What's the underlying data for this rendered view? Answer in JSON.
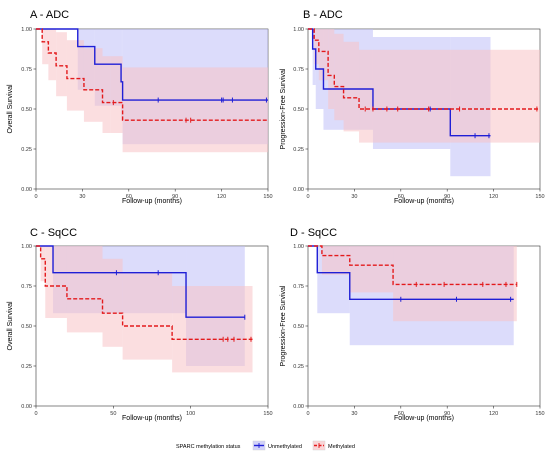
{
  "colors": {
    "unmethylated": "#1f1fd6",
    "unmethylated_band": "#bfbff7",
    "methylated": "#e31a1c",
    "methylated_band": "#f8c3c6"
  },
  "legend": {
    "title": "SPARC methylation status",
    "items": [
      {
        "label": "Unmethylated",
        "color": "#1f1fd6",
        "dash": "none"
      },
      {
        "label": "Methylated",
        "color": "#e31a1c",
        "dash": "4,2"
      }
    ]
  },
  "chart_data": [
    {
      "type": "line",
      "step": true,
      "title": "A - ADC",
      "xlabel": "Follow-up (months)",
      "ylabel": "Overall Survival",
      "xlim": [
        0,
        150
      ],
      "ylim": [
        0,
        1
      ],
      "xticks": [
        0,
        30,
        60,
        90,
        120,
        150
      ],
      "yticks": [
        "0.00",
        "0.25",
        "0.50",
        "0.75",
        "1.00"
      ],
      "grid": false,
      "series": [
        {
          "name": "Unmethylated",
          "x": [
            0,
            27,
            38,
            55,
            56,
            150
          ],
          "y": [
            1.0,
            0.89,
            0.78,
            0.67,
            0.556,
            0.556
          ],
          "lower": [
            1.0,
            0.62,
            0.52,
            0.43,
            0.28,
            0.28
          ],
          "upper": [
            1.0,
            1.0,
            1.0,
            1.0,
            1.0,
            1.0
          ],
          "censored": [
            [
              79,
              0.556
            ],
            [
              120,
              0.556
            ],
            [
              121,
              0.556
            ],
            [
              127,
              0.556
            ],
            [
              149,
              0.556
            ]
          ]
        },
        {
          "name": "Methylated",
          "x": [
            0,
            4,
            8,
            13,
            20,
            31,
            43,
            48,
            56,
            150
          ],
          "y": [
            1.0,
            0.92,
            0.85,
            0.77,
            0.69,
            0.62,
            0.54,
            0.54,
            0.43,
            0.43
          ],
          "lower": [
            1.0,
            0.78,
            0.68,
            0.58,
            0.49,
            0.42,
            0.35,
            0.35,
            0.23,
            0.23
          ],
          "upper": [
            1.0,
            1.0,
            1.0,
            0.98,
            0.93,
            0.88,
            0.83,
            0.83,
            0.76,
            0.76
          ],
          "censored": [
            [
              50,
              0.54
            ],
            [
              97,
              0.43
            ],
            [
              100,
              0.43
            ]
          ]
        }
      ]
    },
    {
      "type": "line",
      "step": true,
      "title": "B - ADC",
      "xlabel": "Follow-up (months)",
      "ylabel": "Progression-Free Survival",
      "xlim": [
        0,
        150
      ],
      "ylim": [
        0,
        1
      ],
      "xticks": [
        0,
        30,
        60,
        90,
        120,
        150
      ],
      "yticks": [
        "0.00",
        "0.25",
        "0.50",
        "0.75",
        "1.00"
      ],
      "grid": false,
      "series": [
        {
          "name": "Unmethylated",
          "x": [
            0,
            3,
            5,
            10,
            42,
            92,
            118
          ],
          "y": [
            1.0,
            0.875,
            0.75,
            0.625,
            0.5,
            0.333,
            0.333
          ],
          "lower": [
            1.0,
            0.65,
            0.5,
            0.37,
            0.25,
            0.08,
            0.08
          ],
          "upper": [
            1.0,
            1.0,
            1.0,
            1.0,
            0.95,
            0.95,
            0.95
          ],
          "censored": [
            [
              79,
              0.5
            ],
            [
              108,
              0.333
            ],
            [
              117,
              0.333
            ]
          ]
        },
        {
          "name": "Methylated",
          "x": [
            0,
            4,
            7,
            13,
            17,
            23,
            33,
            150
          ],
          "y": [
            1.0,
            0.93,
            0.86,
            0.71,
            0.64,
            0.57,
            0.5,
            0.5
          ],
          "lower": [
            1.0,
            0.78,
            0.68,
            0.5,
            0.43,
            0.36,
            0.29,
            0.29
          ],
          "upper": [
            1.0,
            1.0,
            1.0,
            1.0,
            0.97,
            0.92,
            0.87,
            0.87
          ],
          "censored": [
            [
              37,
              0.5
            ],
            [
              42,
              0.5
            ],
            [
              51,
              0.5
            ],
            [
              58,
              0.5
            ],
            [
              78,
              0.5
            ],
            [
              98,
              0.5
            ],
            [
              148,
              0.5
            ]
          ]
        }
      ]
    },
    {
      "type": "line",
      "step": true,
      "title": "C - SqCC",
      "xlabel": "Follow-up (months)",
      "ylabel": "Overall Survival",
      "xlim": [
        0,
        150
      ],
      "ylim": [
        0,
        1
      ],
      "xticks": [
        0,
        50,
        100,
        150
      ],
      "yticks": [
        "0.00",
        "0.25",
        "0.50",
        "0.75",
        "1.00"
      ],
      "grid": false,
      "series": [
        {
          "name": "Unmethylated",
          "x": [
            0,
            11,
            97,
            135
          ],
          "y": [
            1.0,
            0.833,
            0.555,
            0.555
          ],
          "lower": [
            1.0,
            0.58,
            0.25,
            0.25
          ],
          "upper": [
            1.0,
            1.0,
            1.0,
            1.0
          ],
          "censored": [
            [
              52,
              0.833
            ],
            [
              79,
              0.833
            ],
            [
              135,
              0.555
            ]
          ]
        },
        {
          "name": "Methylated",
          "x": [
            0,
            3,
            6,
            20,
            43,
            56,
            88,
            140
          ],
          "y": [
            1.0,
            0.92,
            0.75,
            0.67,
            0.58,
            0.5,
            0.417,
            0.417
          ],
          "lower": [
            1.0,
            0.78,
            0.55,
            0.46,
            0.37,
            0.29,
            0.21,
            0.21
          ],
          "upper": [
            1.0,
            1.0,
            1.0,
            1.0,
            0.92,
            0.83,
            0.75,
            0.75
          ],
          "censored": [
            [
              121,
              0.417
            ],
            [
              124,
              0.417
            ],
            [
              128,
              0.417
            ],
            [
              139,
              0.417
            ]
          ]
        }
      ]
    },
    {
      "type": "line",
      "step": true,
      "title": "D - SqCC",
      "xlabel": "Follow-up (months)",
      "ylabel": "Progression-Free Survival",
      "xlim": [
        0,
        150
      ],
      "ylim": [
        0,
        1
      ],
      "xticks": [
        0,
        30,
        60,
        90,
        120,
        150
      ],
      "yticks": [
        "0.00",
        "0.25",
        "0.50",
        "0.75",
        "1.00"
      ],
      "grid": false,
      "series": [
        {
          "name": "Unmethylated",
          "x": [
            0,
            6,
            27,
            133
          ],
          "y": [
            1.0,
            0.833,
            0.667,
            0.667
          ],
          "lower": [
            1.0,
            0.58,
            0.38,
            0.38
          ],
          "upper": [
            1.0,
            1.0,
            1.0,
            1.0
          ],
          "censored": [
            [
              60,
              0.667
            ],
            [
              96,
              0.667
            ],
            [
              131,
              0.667
            ]
          ]
        },
        {
          "name": "Methylated",
          "x": [
            0,
            9,
            27,
            55,
            135
          ],
          "y": [
            1.0,
            0.94,
            0.88,
            0.76,
            0.76
          ],
          "lower": [
            1.0,
            0.82,
            0.71,
            0.53,
            0.53
          ],
          "upper": [
            1.0,
            1.0,
            1.0,
            1.0,
            1.0
          ],
          "censored": [
            [
              70,
              0.76
            ],
            [
              88,
              0.76
            ],
            [
              113,
              0.76
            ],
            [
              128,
              0.76
            ],
            [
              135,
              0.76
            ]
          ]
        }
      ]
    }
  ]
}
